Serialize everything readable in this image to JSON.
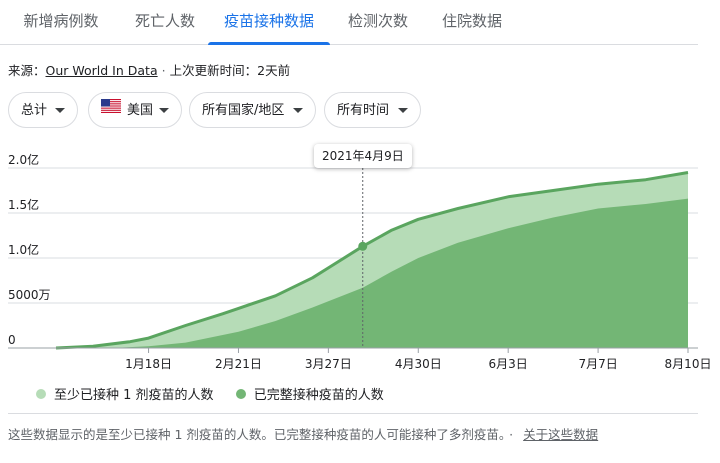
{
  "tabs": [
    {
      "label": "新增病例数",
      "active": false
    },
    {
      "label": "死亡人数",
      "active": false
    },
    {
      "label": "疫苗接种数据",
      "active": true
    },
    {
      "label": "检测次数",
      "active": false
    },
    {
      "label": "住院数据",
      "active": false
    }
  ],
  "source": {
    "prefix": "来源：",
    "link": "Our World In Data",
    "separator": "·",
    "updated": "上次更新时间：2天前"
  },
  "filters": {
    "metric": "总计",
    "country": "美国",
    "region": "所有国家/地区",
    "time": "所有时间"
  },
  "icons": {
    "flag": "us-flag-icon",
    "caret": "caret-down-icon"
  },
  "tooltip": {
    "date_label": "2021年4月9日"
  },
  "legend": {
    "at_least_one": "至少已接种 1 剂疫苗的人数",
    "fully": "已完整接种疫苗的人数"
  },
  "footer": {
    "note": "这些数据显示的是至少已接种 1 剂疫苗的人数。已完整接种疫苗的人可能接种了多剂疫苗。",
    "separator": "·",
    "link": "关于这些数据"
  },
  "colors": {
    "accent": "#1a73e8",
    "line": "#5aa55f",
    "area_light": "#b6dcb7",
    "area_dark": "#73b675",
    "grid": "#dadce0"
  },
  "chart_data": {
    "type": "area",
    "x_ticks": [
      "1月18日",
      "2月21日",
      "3月27日",
      "4月30日",
      "6月3日",
      "7月7日",
      "8月10日"
    ],
    "y_ticks": [
      "0",
      "5000万",
      "1.0亿",
      "1.5亿",
      "2.0亿"
    ],
    "ylim": [
      0,
      200000000
    ],
    "xlim": [
      "2020-12-14",
      "2021-08-10"
    ],
    "series": [
      {
        "name": "至少已接种 1 剂疫苗的人数",
        "points": [
          [
            "2020-12-14",
            0
          ],
          [
            "2020-12-28",
            2000000
          ],
          [
            "2021-01-11",
            7000000
          ],
          [
            "2021-01-18",
            11000000
          ],
          [
            "2021-02-01",
            25000000
          ],
          [
            "2021-02-15",
            38000000
          ],
          [
            "2021-02-21",
            44000000
          ],
          [
            "2021-03-07",
            58000000
          ],
          [
            "2021-03-21",
            78000000
          ],
          [
            "2021-03-27",
            89000000
          ],
          [
            "2021-04-09",
            113000000
          ],
          [
            "2021-04-20",
            131000000
          ],
          [
            "2021-04-30",
            143000000
          ],
          [
            "2021-05-15",
            155000000
          ],
          [
            "2021-06-03",
            168000000
          ],
          [
            "2021-06-20",
            175000000
          ],
          [
            "2021-07-07",
            182000000
          ],
          [
            "2021-07-25",
            187000000
          ],
          [
            "2021-08-10",
            195000000
          ]
        ]
      },
      {
        "name": "已完整接种疫苗的人数",
        "points": [
          [
            "2020-12-14",
            0
          ],
          [
            "2021-01-04",
            0
          ],
          [
            "2021-01-18",
            2000000
          ],
          [
            "2021-02-01",
            6000000
          ],
          [
            "2021-02-21",
            18000000
          ],
          [
            "2021-03-07",
            30000000
          ],
          [
            "2021-03-21",
            45000000
          ],
          [
            "2021-03-27",
            52000000
          ],
          [
            "2021-04-09",
            67000000
          ],
          [
            "2021-04-20",
            85000000
          ],
          [
            "2021-04-30",
            100000000
          ],
          [
            "2021-05-15",
            117000000
          ],
          [
            "2021-06-03",
            133000000
          ],
          [
            "2021-06-20",
            145000000
          ],
          [
            "2021-07-07",
            155000000
          ],
          [
            "2021-07-25",
            160000000
          ],
          [
            "2021-08-10",
            166000000
          ]
        ]
      }
    ],
    "highlight_date": "2021-04-09",
    "grid": true
  }
}
